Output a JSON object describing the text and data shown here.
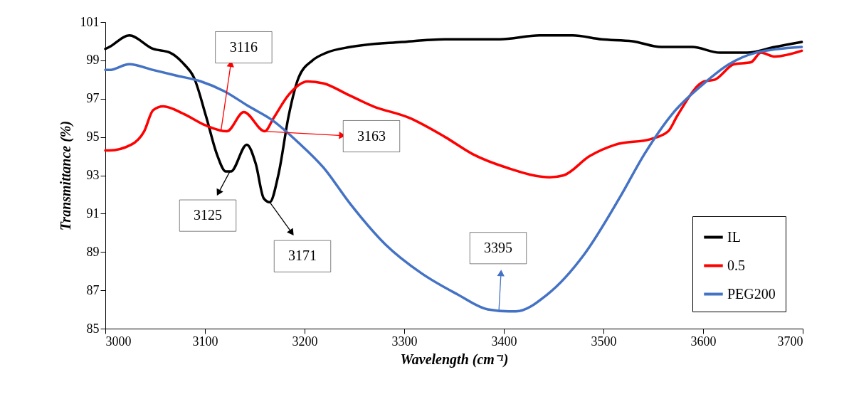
{
  "chart_data": {
    "type": "line",
    "xlabel": "Wavelength (cm⁻¹)",
    "ylabel": "Transmittance (%)",
    "xlim": [
      3000,
      3700
    ],
    "ylim": [
      85,
      101
    ],
    "xticks": [
      3000,
      3100,
      3200,
      3300,
      3400,
      3500,
      3600,
      3700
    ],
    "yticks": [
      85,
      87,
      89,
      91,
      93,
      95,
      97,
      99,
      101
    ],
    "legend": "bottom right",
    "line_style": "solid",
    "series": [
      {
        "name": "IL",
        "color": "#000000",
        "x": [
          3000,
          3004,
          3024,
          3048,
          3065,
          3079,
          3089,
          3101,
          3112,
          3121,
          3126,
          3142,
          3151,
          3159,
          3165,
          3174,
          3184,
          3194,
          3208,
          3222,
          3246,
          3298,
          3341,
          3396,
          3436,
          3469,
          3498,
          3529,
          3558,
          3589,
          3617,
          3644,
          3672,
          3699
        ],
        "values": [
          99.6,
          99.7,
          100.3,
          99.6,
          99.4,
          98.8,
          98.1,
          96.1,
          94.1,
          93.2,
          93.2,
          94.6,
          93.6,
          91.8,
          91.6,
          93.1,
          96.1,
          98.1,
          99.0,
          99.4,
          99.7,
          99.96,
          100.1,
          100.1,
          100.3,
          100.3,
          100.1,
          100.0,
          99.7,
          99.7,
          99.4,
          99.4,
          99.7,
          99.96
        ]
      },
      {
        "name": "0.5",
        "color": "#ff0000",
        "x": [
          3000,
          3004,
          3026,
          3039,
          3048,
          3058,
          3079,
          3101,
          3122,
          3139,
          3160,
          3169,
          3184,
          3203,
          3219,
          3244,
          3269,
          3305,
          3341,
          3369,
          3403,
          3446,
          3460,
          3486,
          3512,
          3548,
          3565,
          3574,
          3601,
          3612,
          3631,
          3648,
          3658,
          3672,
          3699
        ],
        "values": [
          94.3,
          94.3,
          94.6,
          95.3,
          96.4,
          96.6,
          96.2,
          95.6,
          95.3,
          96.3,
          95.3,
          96.0,
          97.2,
          97.9,
          97.8,
          97.2,
          96.6,
          96.0,
          95.0,
          94.1,
          93.4,
          92.9,
          93.0,
          94.0,
          94.6,
          94.9,
          95.3,
          96.1,
          97.9,
          98.0,
          98.8,
          98.9,
          99.4,
          99.2,
          99.5
        ]
      },
      {
        "name": "PEG200",
        "color": "#4472c4",
        "x": [
          3000,
          3004,
          3024,
          3048,
          3072,
          3096,
          3119,
          3144,
          3167,
          3194,
          3219,
          3246,
          3281,
          3317,
          3353,
          3384,
          3405,
          3412,
          3444,
          3481,
          3517,
          3541,
          3569,
          3601,
          3626,
          3653,
          3699
        ],
        "values": [
          98.5,
          98.5,
          98.8,
          98.5,
          98.2,
          97.9,
          97.4,
          96.6,
          95.9,
          94.7,
          93.4,
          91.5,
          89.4,
          87.9,
          86.8,
          86.0,
          85.9,
          85.9,
          86.8,
          88.9,
          91.9,
          94.1,
          96.2,
          97.8,
          98.8,
          99.4,
          99.7
        ]
      }
    ],
    "annotations": [
      {
        "text": "3116",
        "x": 3116,
        "y": 95.3
      },
      {
        "text": "3163",
        "x": 3160,
        "y": 95.3
      },
      {
        "text": "3125",
        "x": 3125,
        "y": 93.2
      },
      {
        "text": "3171",
        "x": 3165,
        "y": 91.6
      },
      {
        "text": "3395",
        "x": 3395,
        "y": 85.9
      }
    ]
  }
}
